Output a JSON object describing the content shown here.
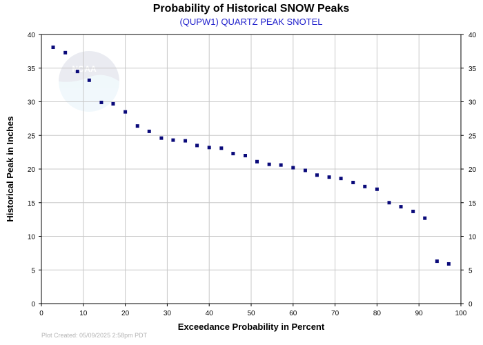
{
  "chart_data": {
    "type": "scatter",
    "title": "Probability of Historical SNOW Peaks",
    "subtitle": "(QUPW1) QUARTZ PEAK SNOTEL",
    "xlabel": "Exceedance Probability in Percent",
    "ylabel": "Historical Peak in Inches",
    "xlim": [
      0,
      100
    ],
    "ylim": [
      0,
      40
    ],
    "x_ticks": [
      "0",
      "10",
      "20",
      "30",
      "40",
      "50",
      "60",
      "70",
      "80",
      "90",
      "100"
    ],
    "y_ticks": [
      "0",
      "5",
      "10",
      "15",
      "20",
      "25",
      "30",
      "35",
      "40"
    ],
    "grid": true,
    "footer": "Plot Created: 05/09/2025 2:58pm PDT",
    "watermark": "NOAA",
    "colors": {
      "marker": "#0a0a7a",
      "subtitle": "#2222cc",
      "grid": "#c8c8c8",
      "footer": "#b4b4b4"
    },
    "points": [
      {
        "x": 2.8,
        "y": 38.1
      },
      {
        "x": 5.7,
        "y": 37.3
      },
      {
        "x": 8.6,
        "y": 34.5
      },
      {
        "x": 11.4,
        "y": 33.2
      },
      {
        "x": 14.3,
        "y": 29.9
      },
      {
        "x": 17.1,
        "y": 29.7
      },
      {
        "x": 20.0,
        "y": 28.5
      },
      {
        "x": 22.9,
        "y": 26.4
      },
      {
        "x": 25.7,
        "y": 25.6
      },
      {
        "x": 28.6,
        "y": 24.6
      },
      {
        "x": 31.4,
        "y": 24.3
      },
      {
        "x": 34.3,
        "y": 24.2
      },
      {
        "x": 37.1,
        "y": 23.5
      },
      {
        "x": 40.0,
        "y": 23.2
      },
      {
        "x": 42.9,
        "y": 23.1
      },
      {
        "x": 45.7,
        "y": 22.3
      },
      {
        "x": 48.6,
        "y": 22.0
      },
      {
        "x": 51.4,
        "y": 21.1
      },
      {
        "x": 54.3,
        "y": 20.7
      },
      {
        "x": 57.1,
        "y": 20.6
      },
      {
        "x": 60.0,
        "y": 20.2
      },
      {
        "x": 62.9,
        "y": 19.8
      },
      {
        "x": 65.7,
        "y": 19.1
      },
      {
        "x": 68.6,
        "y": 18.8
      },
      {
        "x": 71.4,
        "y": 18.6
      },
      {
        "x": 74.3,
        "y": 18.0
      },
      {
        "x": 77.1,
        "y": 17.4
      },
      {
        "x": 80.0,
        "y": 17.0
      },
      {
        "x": 82.9,
        "y": 15.0
      },
      {
        "x": 85.7,
        "y": 14.4
      },
      {
        "x": 88.6,
        "y": 13.7
      },
      {
        "x": 91.4,
        "y": 12.7
      },
      {
        "x": 94.3,
        "y": 6.3
      },
      {
        "x": 97.1,
        "y": 5.9
      }
    ]
  }
}
